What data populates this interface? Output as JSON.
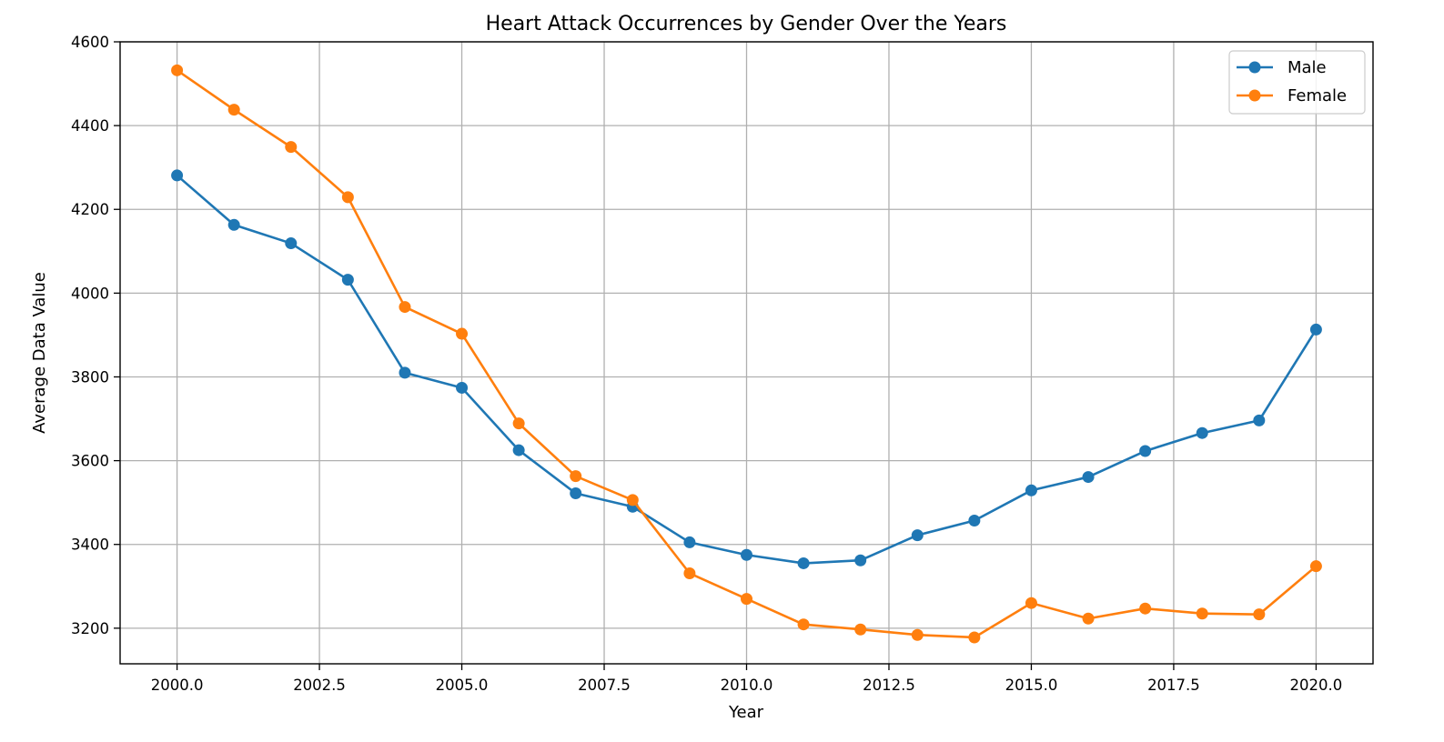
{
  "chart_data": {
    "type": "line",
    "title": "Heart Attack Occurrences by Gender Over the Years",
    "xlabel": "Year",
    "ylabel": "Average Data Value",
    "xlim": [
      1999.0,
      2021.0
    ],
    "ylim": [
      3115,
      4600
    ],
    "x_ticks": [
      2000.0,
      2002.5,
      2005.0,
      2007.5,
      2010.0,
      2012.5,
      2015.0,
      2017.5,
      2020.0
    ],
    "x_tick_labels": [
      "2000.0",
      "2002.5",
      "2005.0",
      "2007.5",
      "2010.0",
      "2012.5",
      "2015.0",
      "2017.5",
      "2020.0"
    ],
    "y_ticks": [
      3200,
      3400,
      3600,
      3800,
      4000,
      4200,
      4400,
      4600
    ],
    "y_tick_labels": [
      "3200",
      "3400",
      "3600",
      "3800",
      "4000",
      "4200",
      "4400",
      "4600"
    ],
    "grid": true,
    "legend_position": "top-right",
    "x": [
      2000,
      2001,
      2002,
      2003,
      2004,
      2005,
      2006,
      2007,
      2008,
      2009,
      2010,
      2011,
      2012,
      2013,
      2014,
      2015,
      2016,
      2017,
      2018,
      2019,
      2020
    ],
    "series": [
      {
        "name": "Male",
        "color": "#1f77b4",
        "marker": "circle",
        "values": [
          4281,
          4163,
          4119,
          4032,
          3810,
          3774,
          3625,
          3522,
          3490,
          3405,
          3375,
          3355,
          3362,
          3422,
          3457,
          3529,
          3561,
          3623,
          3666,
          3696,
          3913
        ]
      },
      {
        "name": "Female",
        "color": "#ff7f0e",
        "marker": "circle",
        "values": [
          4532,
          4438,
          4349,
          4229,
          3967,
          3903,
          3689,
          3563,
          3506,
          3331,
          3270,
          3209,
          3197,
          3184,
          3178,
          3260,
          3223,
          3247,
          3235,
          3233,
          3348
        ]
      }
    ]
  }
}
